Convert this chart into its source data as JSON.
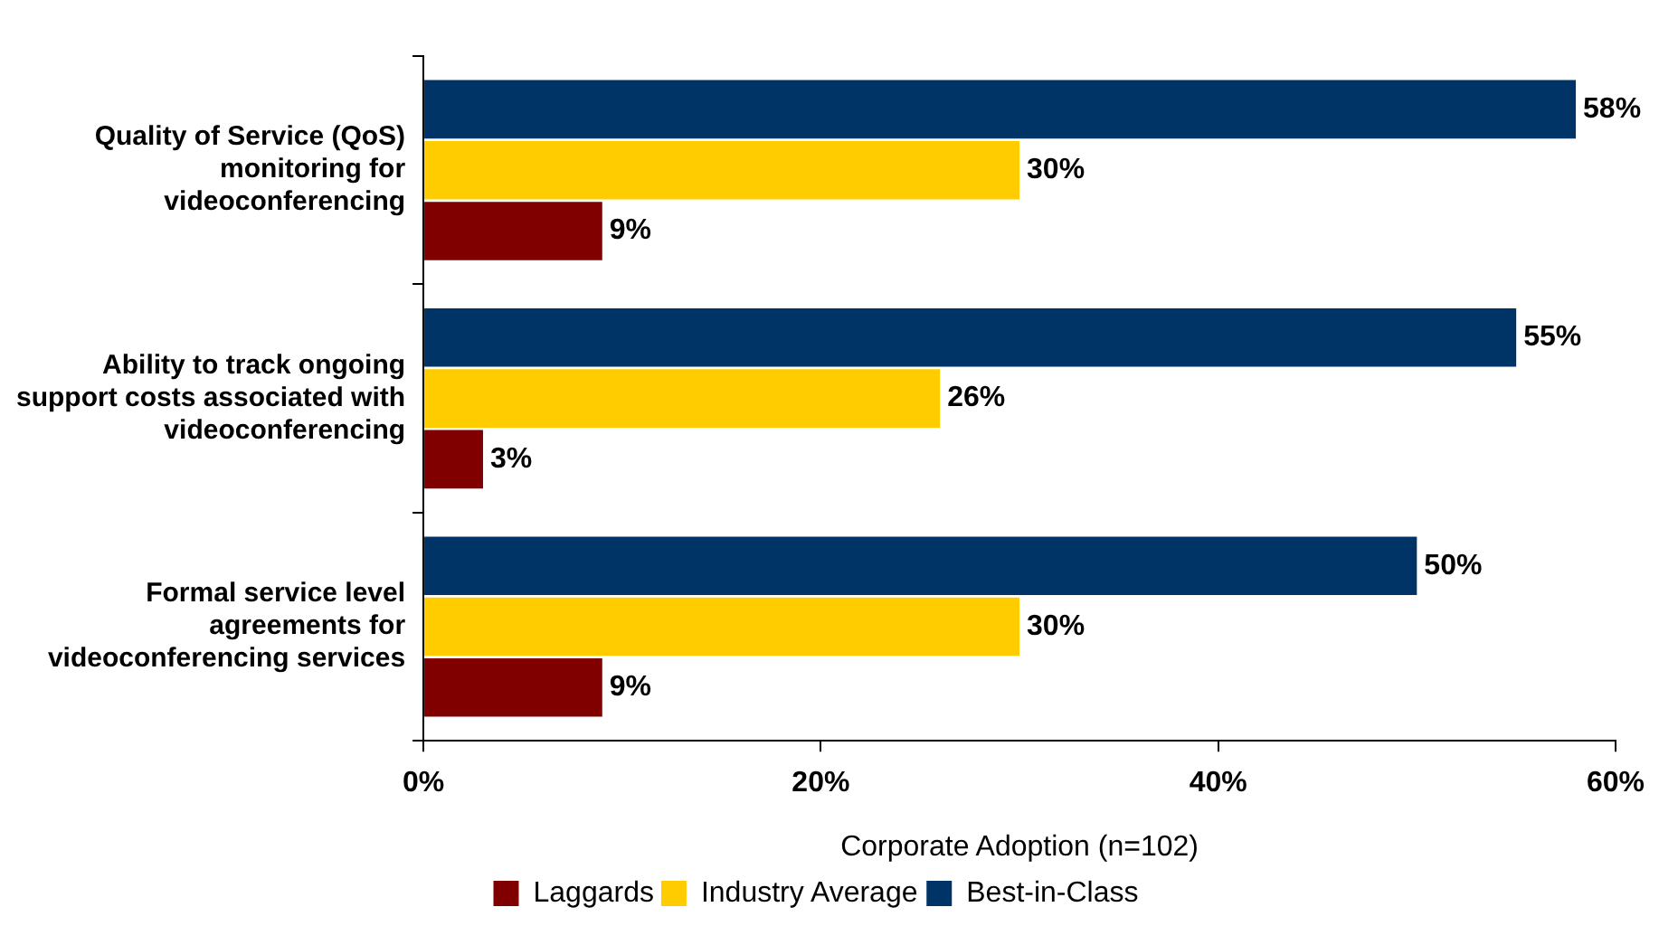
{
  "chart_data": {
    "type": "bar",
    "orientation": "horizontal",
    "xlabel": "Corporate Adoption (n=102)",
    "categories": [
      "Quality of Service (QoS) monitoring for videoconferencing",
      "Ability to track ongoing support costs associated with videoconferencing",
      "Formal service level agreements for videoconferencing services"
    ],
    "series": [
      {
        "name": "Best-in-Class",
        "color": "#003366",
        "values": [
          58,
          55,
          50
        ],
        "value_labels": [
          "58%",
          "55%",
          "50%"
        ]
      },
      {
        "name": "Industry Average",
        "color": "#ffcc00",
        "values": [
          30,
          26,
          30
        ],
        "value_labels": [
          "30%",
          "26%",
          "30%"
        ]
      },
      {
        "name": "Laggards",
        "color": "#800000",
        "values": [
          9,
          3,
          9
        ],
        "value_labels": [
          "9%",
          "3%",
          "9%"
        ]
      }
    ],
    "xlim": [
      0,
      60
    ],
    "xticks": [
      {
        "value": 0,
        "label": "0%"
      },
      {
        "value": 20,
        "label": "20%"
      },
      {
        "value": 40,
        "label": "40%"
      },
      {
        "value": 60,
        "label": "60%"
      }
    ],
    "grid": false,
    "legend": "bottom"
  }
}
